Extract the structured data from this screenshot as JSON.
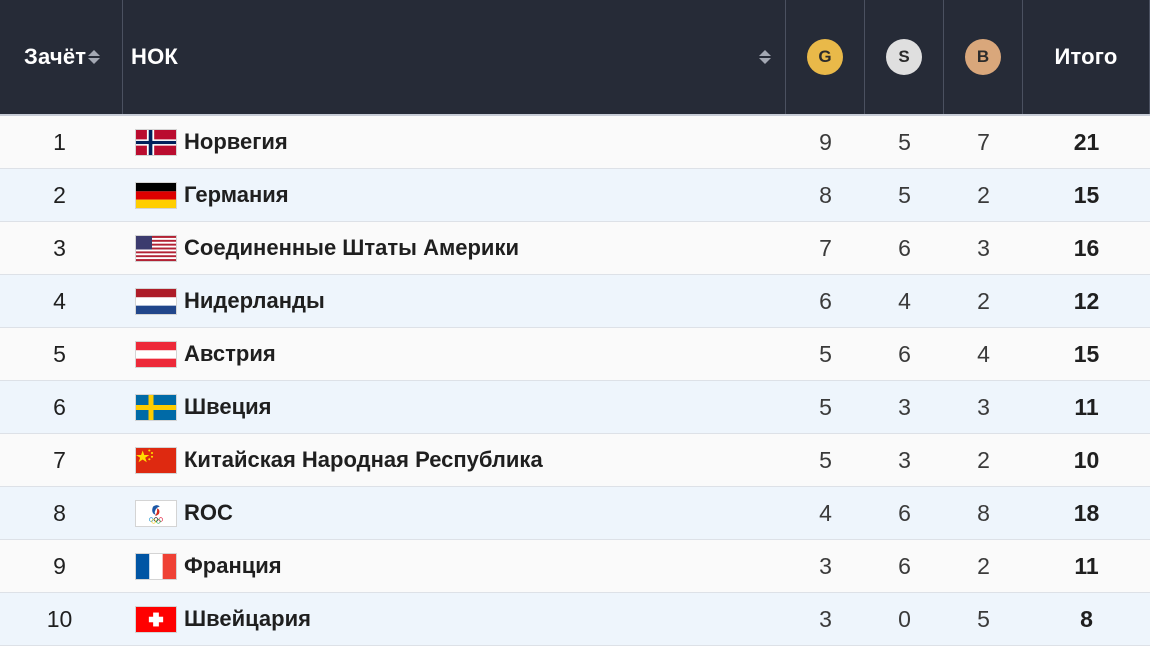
{
  "header": {
    "rank": "Зачёт",
    "noc": "НОК",
    "gold": "G",
    "silver": "S",
    "bronze": "B",
    "total": "Итого"
  },
  "colors": {
    "header_bg": "#262b37",
    "gold_medal": "#e9b949",
    "silver_medal": "#dfdfdf",
    "bronze_medal": "#d9a77b",
    "row_odd": "#fafafa",
    "row_even": "#eef5fc"
  },
  "rows": [
    {
      "rank": "1",
      "country": "Норвегия",
      "flag": "norway-flag-icon",
      "gold": "9",
      "silver": "5",
      "bronze": "7",
      "total": "21"
    },
    {
      "rank": "2",
      "country": "Германия",
      "flag": "germany-flag-icon",
      "gold": "8",
      "silver": "5",
      "bronze": "2",
      "total": "15"
    },
    {
      "rank": "3",
      "country": "Соединенные Штаты Америки",
      "flag": "usa-flag-icon",
      "gold": "7",
      "silver": "6",
      "bronze": "3",
      "total": "16"
    },
    {
      "rank": "4",
      "country": "Нидерланды",
      "flag": "netherlands-flag-icon",
      "gold": "6",
      "silver": "4",
      "bronze": "2",
      "total": "12"
    },
    {
      "rank": "5",
      "country": "Австрия",
      "flag": "austria-flag-icon",
      "gold": "5",
      "silver": "6",
      "bronze": "4",
      "total": "15"
    },
    {
      "rank": "6",
      "country": "Швеция",
      "flag": "sweden-flag-icon",
      "gold": "5",
      "silver": "3",
      "bronze": "3",
      "total": "11"
    },
    {
      "rank": "7",
      "country": "Китайская Народная Республика",
      "flag": "china-flag-icon",
      "gold": "5",
      "silver": "3",
      "bronze": "2",
      "total": "10"
    },
    {
      "rank": "8",
      "country": "ROC",
      "flag": "roc-emblem-icon",
      "gold": "4",
      "silver": "6",
      "bronze": "8",
      "total": "18"
    },
    {
      "rank": "9",
      "country": "Франция",
      "flag": "france-flag-icon",
      "gold": "3",
      "silver": "6",
      "bronze": "2",
      "total": "11"
    },
    {
      "rank": "10",
      "country": "Швейцария",
      "flag": "switzerland-flag-icon",
      "gold": "3",
      "silver": "0",
      "bronze": "5",
      "total": "8"
    }
  ]
}
